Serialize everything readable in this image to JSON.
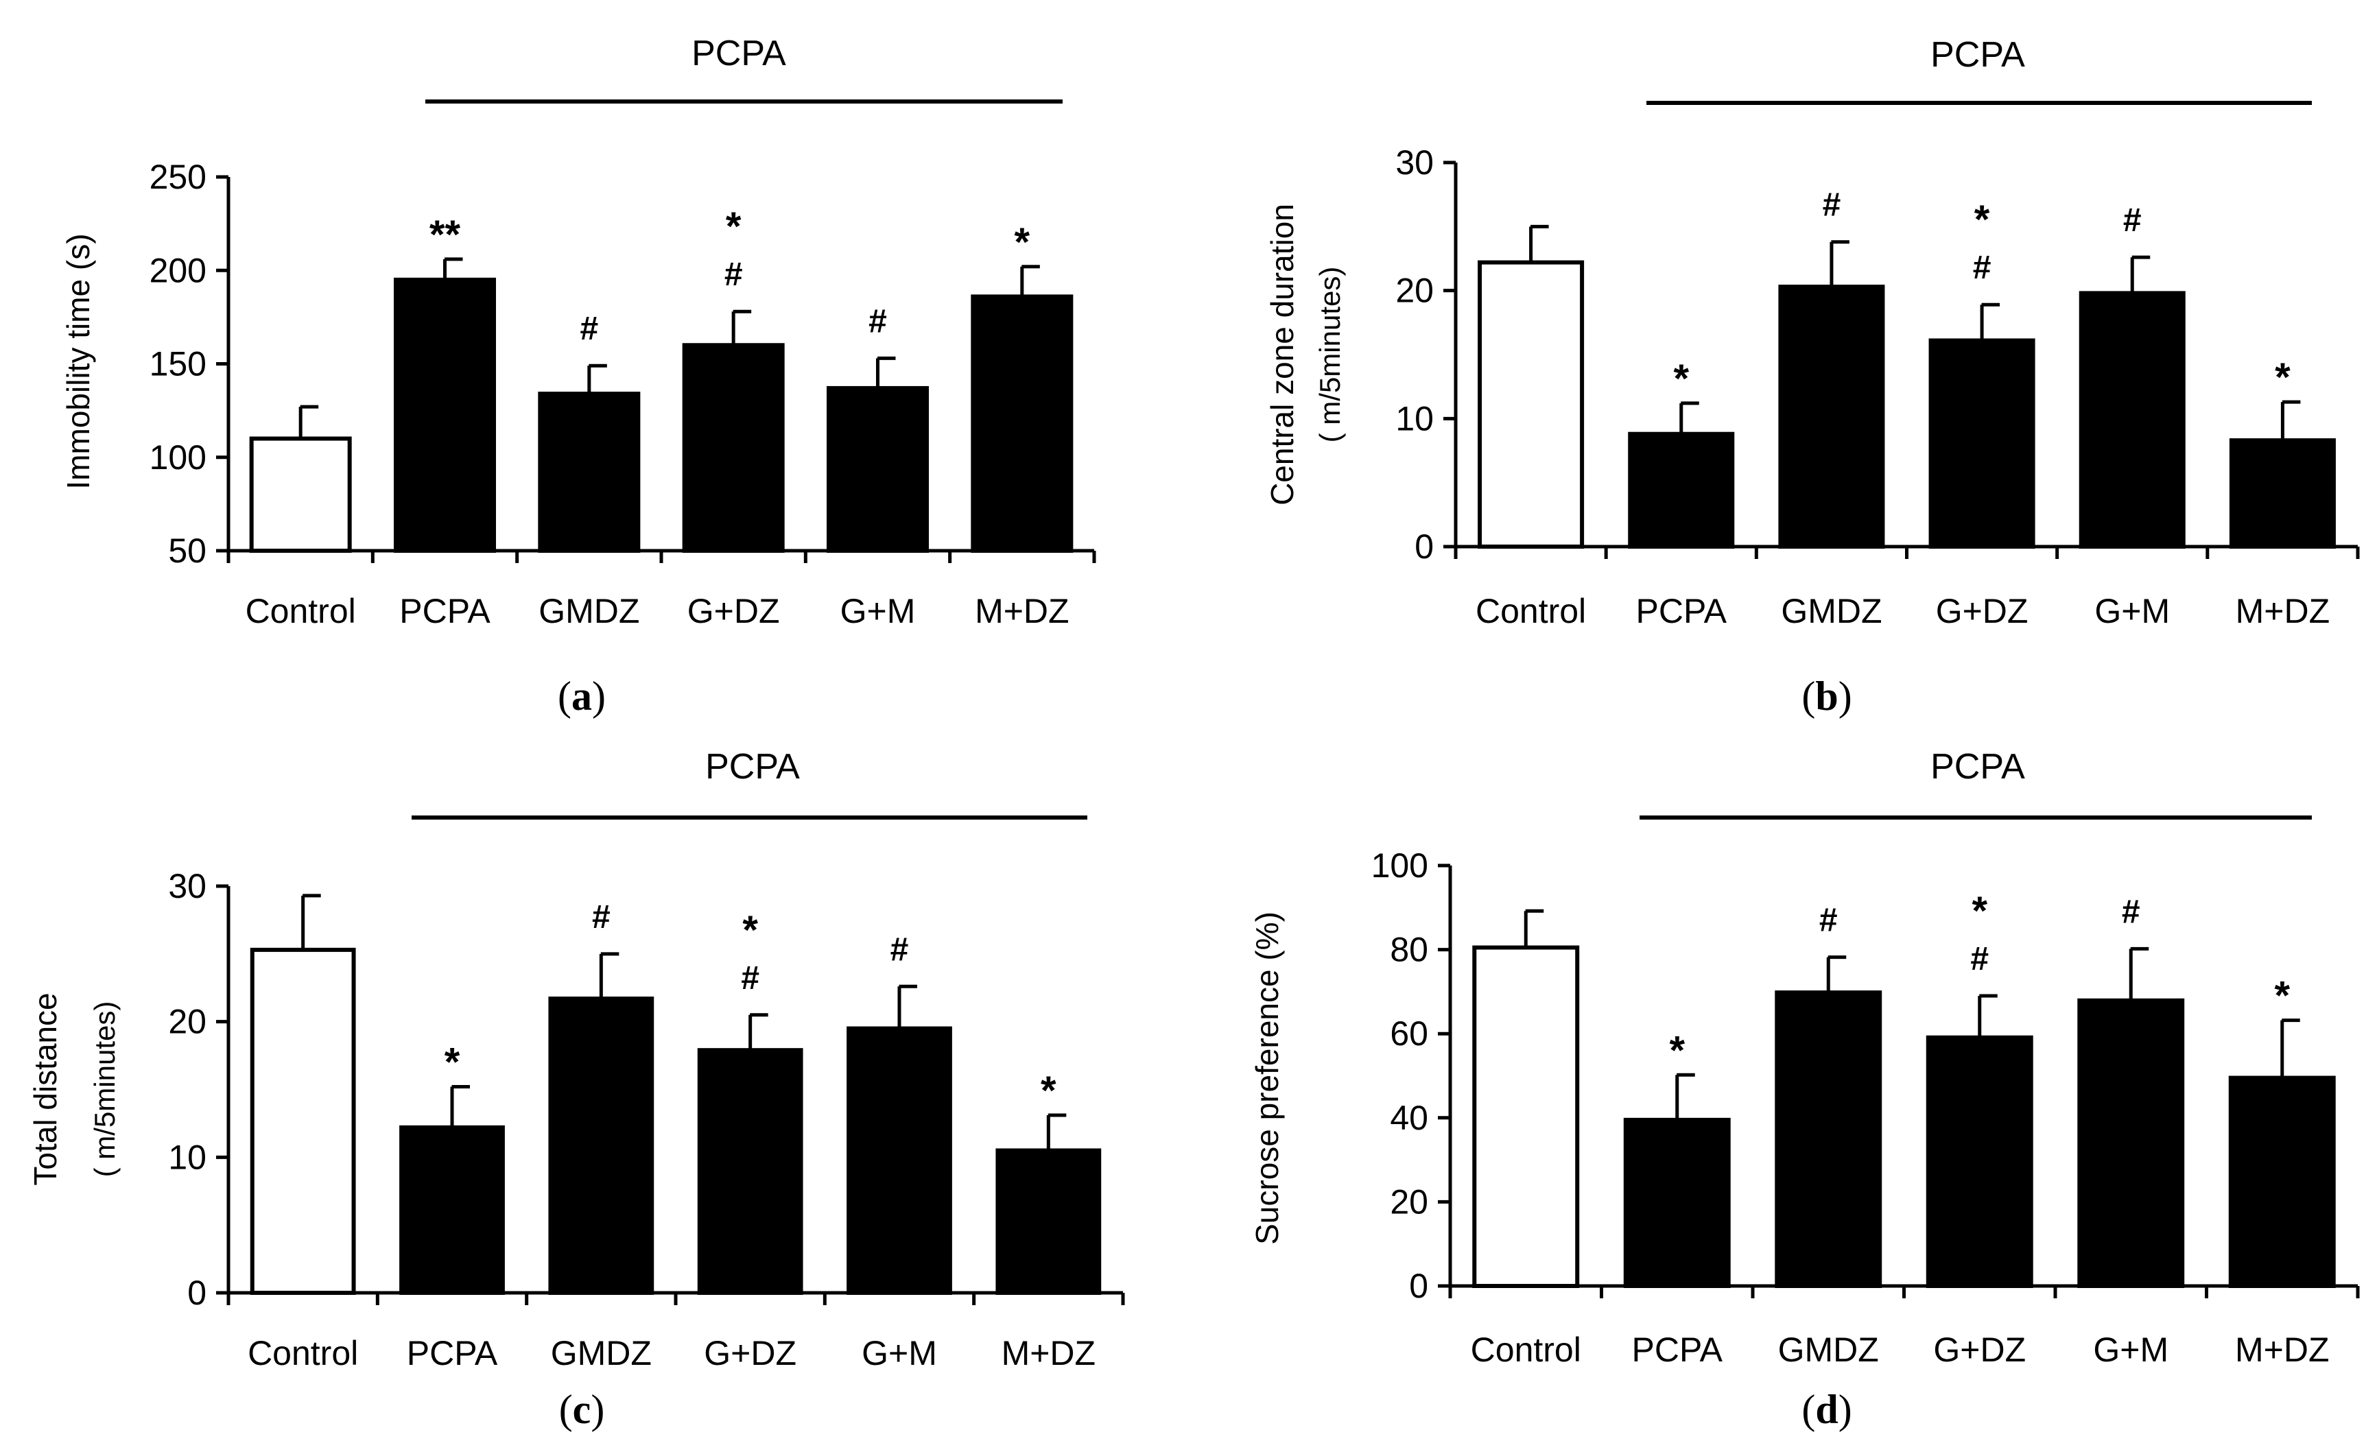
{
  "chart_data": [
    {
      "type": "bar",
      "panel_label_prefix": "(",
      "panel_letter": "a",
      "panel_label_suffix": ")",
      "group_label": "PCPA",
      "ylabel": "Immobility time (s)",
      "ylabel2": "",
      "categories": [
        "Control",
        "PCPA",
        "GMDZ",
        "G+DZ",
        "G+M",
        "M+DZ"
      ],
      "values": [
        110,
        195,
        134,
        160,
        137,
        186
      ],
      "errors": [
        17,
        11,
        15,
        18,
        16,
        16
      ],
      "ylim": [
        50,
        250
      ],
      "yticks": [
        50,
        100,
        150,
        200,
        250
      ],
      "fills": [
        "#ffffff",
        "#000000",
        "#000000",
        "#000000",
        "#000000",
        "#000000"
      ],
      "annotations": [
        {
          "category": "PCPA",
          "text": "**"
        },
        {
          "category": "GMDZ",
          "text": "#"
        },
        {
          "category": "G+DZ",
          "text": "#"
        },
        {
          "category": "G+DZ",
          "text": "*"
        },
        {
          "category": "G+M",
          "text": "#"
        },
        {
          "category": "M+DZ",
          "text": "*"
        }
      ]
    },
    {
      "type": "bar",
      "panel_label_prefix": "(",
      "panel_letter": "b",
      "panel_label_suffix": ")",
      "group_label": "PCPA",
      "ylabel": "Central zone duration",
      "ylabel2": "( m/5minutes)",
      "categories": [
        "Control",
        "PCPA",
        "GMDZ",
        "G+DZ",
        "G+M",
        "M+DZ"
      ],
      "values": [
        22.2,
        8.8,
        20.3,
        16.1,
        19.8,
        8.3
      ],
      "errors": [
        2.8,
        2.4,
        3.5,
        2.8,
        2.8,
        3.0
      ],
      "ylim": [
        0,
        30
      ],
      "yticks": [
        0,
        10,
        20,
        30
      ],
      "fills": [
        "#ffffff",
        "#000000",
        "#000000",
        "#000000",
        "#000000",
        "#000000"
      ],
      "annotations": [
        {
          "category": "PCPA",
          "text": "*"
        },
        {
          "category": "GMDZ",
          "text": "#"
        },
        {
          "category": "G+DZ",
          "text": "#"
        },
        {
          "category": "G+DZ",
          "text": "*"
        },
        {
          "category": "G+M",
          "text": "#"
        },
        {
          "category": "M+DZ",
          "text": "*"
        }
      ]
    },
    {
      "type": "bar",
      "panel_label_prefix": "(",
      "panel_letter": "c",
      "panel_label_suffix": ")",
      "group_label": "PCPA",
      "ylabel": "Total distance",
      "ylabel2": "( m/5minutes)",
      "categories": [
        "Control",
        "PCPA",
        "GMDZ",
        "G+DZ",
        "G+M",
        "M+DZ"
      ],
      "values": [
        25.3,
        12.2,
        21.7,
        17.9,
        19.5,
        10.5
      ],
      "errors": [
        4.0,
        3.0,
        3.3,
        2.6,
        3.1,
        2.6
      ],
      "ylim": [
        0,
        30
      ],
      "yticks": [
        0,
        10,
        20,
        30
      ],
      "fills": [
        "#ffffff",
        "#000000",
        "#000000",
        "#000000",
        "#000000",
        "#000000"
      ],
      "annotations": [
        {
          "category": "PCPA",
          "text": "*"
        },
        {
          "category": "GMDZ",
          "text": "#"
        },
        {
          "category": "G+DZ",
          "text": "#"
        },
        {
          "category": "G+DZ",
          "text": "*"
        },
        {
          "category": "G+M",
          "text": "#"
        },
        {
          "category": "M+DZ",
          "text": "*"
        }
      ]
    },
    {
      "type": "bar",
      "panel_label_prefix": "(",
      "panel_letter": "d",
      "panel_label_suffix": ")",
      "group_label": "PCPA",
      "ylabel": "Sucrose preference (%)",
      "ylabel2": "",
      "categories": [
        "Control",
        "PCPA",
        "GMDZ",
        "G+DZ",
        "G+M",
        "M+DZ"
      ],
      "values": [
        80.5,
        39.5,
        69.8,
        59.1,
        67.9,
        49.5
      ],
      "errors": [
        8.7,
        10.7,
        8.4,
        9.9,
        12.3,
        13.7
      ],
      "ylim": [
        0,
        100
      ],
      "yticks": [
        0,
        20,
        40,
        60,
        80,
        100
      ],
      "fills": [
        "#ffffff",
        "#000000",
        "#000000",
        "#000000",
        "#000000",
        "#000000"
      ],
      "annotations": [
        {
          "category": "PCPA",
          "text": "*"
        },
        {
          "category": "GMDZ",
          "text": "#"
        },
        {
          "category": "G+DZ",
          "text": "#"
        },
        {
          "category": "G+DZ",
          "text": "*"
        },
        {
          "category": "G+M",
          "text": "#"
        },
        {
          "category": "M+DZ",
          "text": "*"
        }
      ]
    }
  ]
}
